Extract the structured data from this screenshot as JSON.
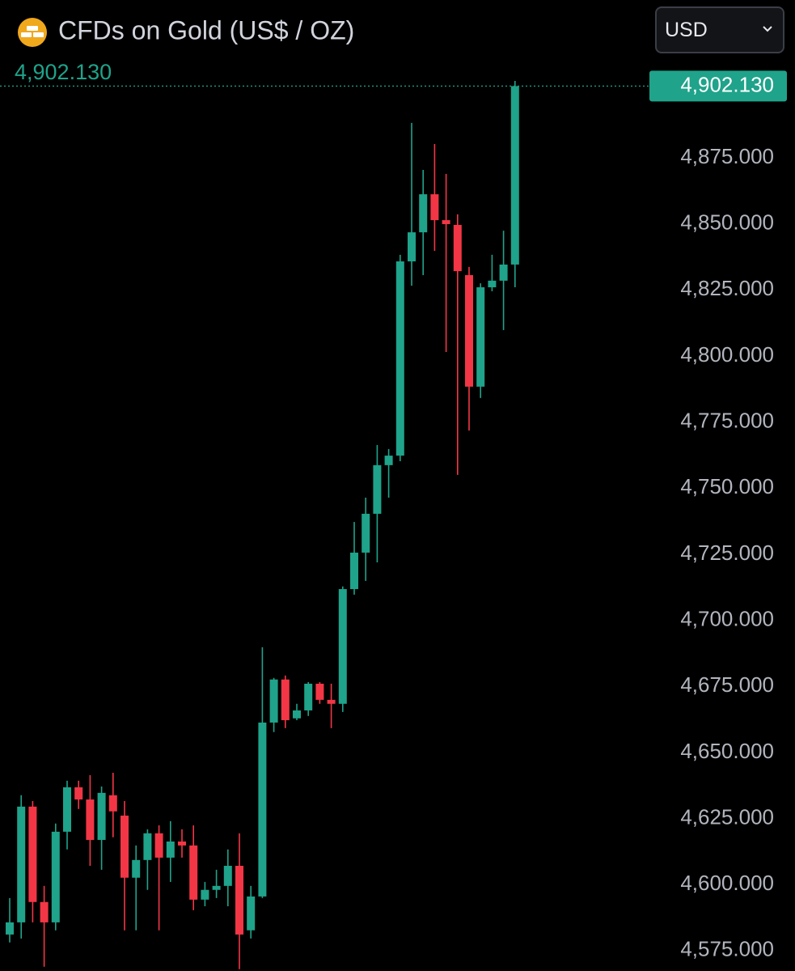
{
  "chart_data": {
    "type": "candlestick",
    "title": "CFDs on Gold (US$ / OZ)",
    "currency": "USD",
    "last_value": 4902.13,
    "last_value_label": "4,902.130",
    "up_color": "#1fa38a",
    "down_color": "#f23645",
    "open": [
      4581.1,
      4585.7,
      4629.5,
      4593.4,
      4585.7,
      4620.0,
      4636.8,
      4632.2,
      4616.9,
      4633.8,
      4626.1,
      4602.6,
      4609.3,
      4619.4,
      4610.2,
      4616.3,
      4614.8,
      4594.3,
      4598.0,
      4599.5,
      4607.1,
      4582.7,
      4595.5,
      4661.3,
      4677.6,
      4662.9,
      4665.9,
      4676.0,
      4669.9,
      4668.4,
      4711.8,
      4725.6,
      4740.3,
      4758.7,
      4762.3,
      4835.8,
      4846.8,
      4861.2,
      4851.4,
      4849.6,
      4830.6,
      4788.4,
      4826.0,
      4828.5,
      4834.6
    ],
    "high": [
      4594.9,
      4633.8,
      4631.6,
      4599.5,
      4623.1,
      4639.3,
      4639.3,
      4641.4,
      4637.1,
      4642.3,
      4631.6,
      4614.8,
      4620.9,
      4622.4,
      4624.0,
      4620.9,
      4622.4,
      4601.0,
      4605.6,
      4613.3,
      4619.4,
      4599.5,
      4689.8,
      4678.2,
      4679.1,
      4668.4,
      4676.6,
      4676.6,
      4676.0,
      4712.8,
      4737.2,
      4746.4,
      4766.3,
      4764.8,
      4838.3,
      4888.2,
      4870.4,
      4880.2,
      4868.9,
      4853.6,
      4833.7,
      4827.5,
      4838.3,
      4847.4,
      4904.1
    ],
    "low": [
      4578.1,
      4579.6,
      4585.7,
      4568.9,
      4582.7,
      4613.3,
      4628.6,
      4607.1,
      4605.6,
      4617.9,
      4582.7,
      4582.7,
      4598.0,
      4582.7,
      4601.0,
      4610.2,
      4590.3,
      4591.8,
      4594.9,
      4591.8,
      4568.0,
      4579.6,
      4594.9,
      4657.7,
      4659.2,
      4662.2,
      4663.8,
      4668.4,
      4659.2,
      4665.3,
      4709.7,
      4714.9,
      4721.9,
      4746.4,
      4760.2,
      4826.6,
      4830.6,
      4839.8,
      4801.5,
      4755.0,
      4771.8,
      4784.1,
      4824.5,
      4809.8,
      4826.0
    ],
    "close": [
      4585.7,
      4629.5,
      4593.4,
      4585.7,
      4620.0,
      4636.8,
      4632.2,
      4616.9,
      4634.7,
      4627.7,
      4602.6,
      4609.3,
      4619.4,
      4610.2,
      4616.3,
      4614.8,
      4594.3,
      4598.0,
      4599.5,
      4607.1,
      4581.1,
      4595.5,
      4661.3,
      4677.6,
      4662.2,
      4665.9,
      4676.0,
      4669.9,
      4668.4,
      4711.8,
      4725.6,
      4740.3,
      4758.7,
      4762.3,
      4835.8,
      4846.8,
      4861.2,
      4851.4,
      4849.9,
      4832.1,
      4788.4,
      4826.0,
      4828.5,
      4834.6,
      4902.13
    ],
    "ylim": [
      4567.3,
      4934.7
    ],
    "yticks": [
      {
        "value": 4575,
        "label": "4,575.000"
      },
      {
        "value": 4600,
        "label": "4,600.000"
      },
      {
        "value": 4625,
        "label": "4,625.000"
      },
      {
        "value": 4650,
        "label": "4,650.000"
      },
      {
        "value": 4675,
        "label": "4,675.000"
      },
      {
        "value": 4700,
        "label": "4,700.000"
      },
      {
        "value": 4725,
        "label": "4,725.000"
      },
      {
        "value": 4750,
        "label": "4,750.000"
      },
      {
        "value": 4775,
        "label": "4,775.000"
      },
      {
        "value": 4800,
        "label": "4,800.000"
      },
      {
        "value": 4825,
        "label": "4,825.000"
      },
      {
        "value": 4850,
        "label": "4,850.000"
      },
      {
        "value": 4875,
        "label": "4,875.000"
      }
    ]
  }
}
